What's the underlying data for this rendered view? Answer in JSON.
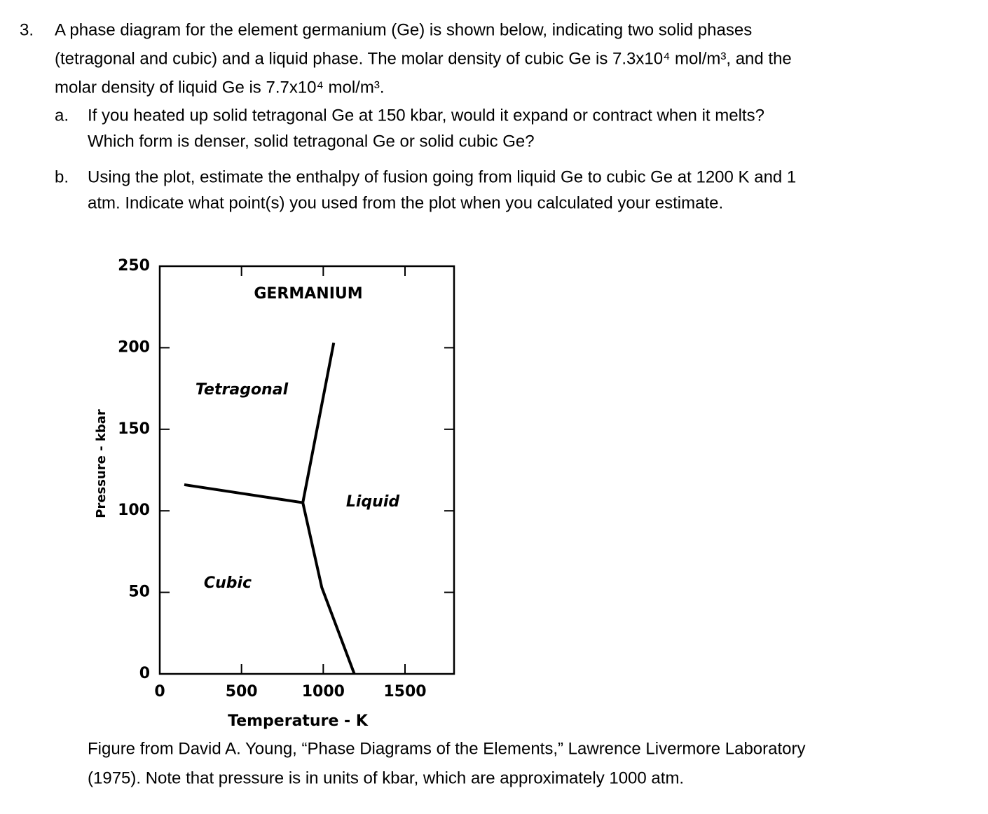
{
  "question": {
    "number": "3.",
    "lines": [
      "A phase diagram for the element germanium (Ge) is shown below, indicating two solid phases",
      "(tetragonal and cubic) and a liquid phase. The molar density of cubic Ge is 7.3x10⁴ mol/m³, and the",
      "molar density of liquid Ge is 7.7x10⁴ mol/m³."
    ],
    "parts": [
      {
        "label": "a.",
        "lines": [
          "If you heated up solid tetragonal Ge at 150 kbar, would it expand or contract when it melts?",
          "Which form is denser, solid tetragonal Ge or solid cubic Ge?"
        ]
      },
      {
        "label": "b.",
        "lines": [
          "Using the plot, estimate the enthalpy of fusion going from liquid Ge to cubic Ge at 1200 K and 1",
          "atm. Indicate what point(s) you used from the plot when you calculated your estimate."
        ]
      }
    ]
  },
  "chart_data": {
    "type": "line",
    "title": "GERMANIUM",
    "xlabel": "Temperature - K",
    "ylabel": "Pressure - kbar",
    "xlim": [
      0,
      1800
    ],
    "ylim": [
      0,
      250
    ],
    "xticks": [
      0,
      500,
      1000,
      1500
    ],
    "yticks": [
      0,
      50,
      100,
      150,
      200,
      250
    ],
    "annotations": [
      "Tetragonal",
      "Liquid",
      "Cubic"
    ],
    "series": [
      {
        "color": "#000000",
        "x": [
          150,
          875
        ],
        "y": [
          116,
          105
        ]
      },
      {
        "color": "#000000",
        "x": [
          875,
          1064
        ],
        "y": [
          105,
          203
        ]
      },
      {
        "color": "#000000",
        "x": [
          875,
          991,
          1190
        ],
        "y": [
          105,
          53,
          0
        ]
      }
    ]
  },
  "caption": [
    "Figure from David A. Young, “Phase Diagrams of the Elements,” Lawrence Livermore Laboratory",
    "(1975). Note that pressure is in units of kbar, which are approximately 1000 atm."
  ]
}
